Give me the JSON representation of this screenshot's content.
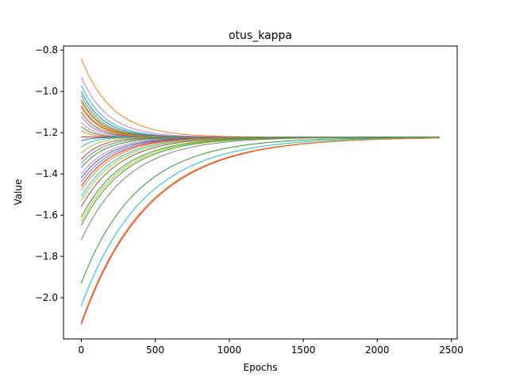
{
  "chart_data": {
    "type": "line",
    "title": "otus_kappa",
    "xlabel": "Epochs",
    "ylabel": "Value",
    "xlim": [
      -120,
      2540
    ],
    "ylim": [
      -2.2,
      -0.78
    ],
    "xticks": [
      0,
      500,
      1000,
      1500,
      2000,
      2500
    ],
    "yticks": [
      -2.0,
      -1.8,
      -1.6,
      -1.4,
      -1.2,
      -1.0,
      -0.8
    ],
    "xtick_labels": [
      "0",
      "500",
      "1000",
      "1500",
      "2000",
      "2500"
    ],
    "ytick_labels": [
      "−2.0",
      "−1.8",
      "−1.6",
      "−1.4",
      "−1.2",
      "−1.0",
      "−0.8"
    ],
    "grid": false,
    "legend": "none",
    "converge_value": -1.222,
    "colors": [
      "#1f77b4",
      "#ff7f0e",
      "#2ca02c",
      "#d62728",
      "#9467bd",
      "#8c564b",
      "#e377c2",
      "#7f7f7f",
      "#bcbd22",
      "#17becf"
    ],
    "series": [
      {
        "start": -0.84,
        "end_epoch": 2420,
        "tau": 210,
        "color": "#ff7f0e"
      },
      {
        "start": -0.93,
        "end_epoch": 2420,
        "tau": 180,
        "color": "#e377c2"
      },
      {
        "start": -0.97,
        "end_epoch": 2420,
        "tau": 160,
        "color": "#17becf"
      },
      {
        "start": -1.0,
        "end_epoch": 2420,
        "tau": 150,
        "color": "#1f77b4"
      },
      {
        "start": -1.02,
        "end_epoch": 2420,
        "tau": 140,
        "color": "#7f7f7f"
      },
      {
        "start": -1.04,
        "end_epoch": 2420,
        "tau": 135,
        "color": "#2ca02c"
      },
      {
        "start": -1.05,
        "end_epoch": 2420,
        "tau": 130,
        "color": "#ff7f0e"
      },
      {
        "start": -1.07,
        "end_epoch": 2420,
        "tau": 125,
        "color": "#d62728"
      },
      {
        "start": -1.08,
        "end_epoch": 2420,
        "tau": 120,
        "color": "#bcbd22"
      },
      {
        "start": -1.1,
        "end_epoch": 2420,
        "tau": 110,
        "color": "#8c564b"
      },
      {
        "start": -1.12,
        "end_epoch": 2420,
        "tau": 100,
        "color": "#9467bd"
      },
      {
        "start": -1.15,
        "end_epoch": 2420,
        "tau": 90,
        "color": "#e377c2"
      },
      {
        "start": -1.17,
        "end_epoch": 2420,
        "tau": 80,
        "color": "#2ca02c"
      },
      {
        "start": -1.19,
        "end_epoch": 2420,
        "tau": 70,
        "color": "#ff7f0e"
      },
      {
        "start": -1.22,
        "end_epoch": 2420,
        "tau": 60,
        "color": "#d62728"
      },
      {
        "start": -1.24,
        "end_epoch": 2420,
        "tau": 70,
        "color": "#1f77b4"
      },
      {
        "start": -1.27,
        "end_epoch": 2420,
        "tau": 90,
        "color": "#17becf"
      },
      {
        "start": -1.3,
        "end_epoch": 2420,
        "tau": 110,
        "color": "#bcbd22"
      },
      {
        "start": -1.33,
        "end_epoch": 2420,
        "tau": 130,
        "color": "#8c564b"
      },
      {
        "start": -1.35,
        "end_epoch": 2420,
        "tau": 150,
        "color": "#7f7f7f"
      },
      {
        "start": -1.37,
        "end_epoch": 2420,
        "tau": 170,
        "color": "#2ca02c"
      },
      {
        "start": -1.4,
        "end_epoch": 2420,
        "tau": 190,
        "color": "#e377c2"
      },
      {
        "start": -1.42,
        "end_epoch": 2420,
        "tau": 200,
        "color": "#1f77b4"
      },
      {
        "start": -1.44,
        "end_epoch": 2420,
        "tau": 210,
        "color": "#9467bd"
      },
      {
        "start": -1.46,
        "end_epoch": 2420,
        "tau": 220,
        "color": "#d62728"
      },
      {
        "start": -1.48,
        "end_epoch": 2420,
        "tau": 230,
        "color": "#ff7f0e"
      },
      {
        "start": -1.51,
        "end_epoch": 2420,
        "tau": 240,
        "color": "#17becf"
      },
      {
        "start": -1.53,
        "end_epoch": 2420,
        "tau": 250,
        "color": "#bcbd22"
      },
      {
        "start": -1.56,
        "end_epoch": 2420,
        "tau": 260,
        "color": "#8c564b"
      },
      {
        "start": -1.61,
        "end_epoch": 2420,
        "tau": 280,
        "color": "#2ca02c"
      },
      {
        "start": -1.63,
        "end_epoch": 2420,
        "tau": 290,
        "color": "#bcbd22"
      },
      {
        "start": -1.65,
        "end_epoch": 2420,
        "tau": 300,
        "color": "#2ca02c"
      },
      {
        "start": -1.72,
        "end_epoch": 2420,
        "tau": 320,
        "color": "#7f7f7f"
      },
      {
        "start": -1.93,
        "end_epoch": 2420,
        "tau": 380,
        "color": "#2ca02c"
      },
      {
        "start": -2.04,
        "end_epoch": 2420,
        "tau": 420,
        "color": "#17becf"
      },
      {
        "start": -2.13,
        "end_epoch": 2420,
        "tau": 450,
        "color": "#d62728"
      },
      {
        "start": -2.12,
        "end_epoch": 2420,
        "tau": 445,
        "color": "#ff7f0e"
      }
    ]
  }
}
